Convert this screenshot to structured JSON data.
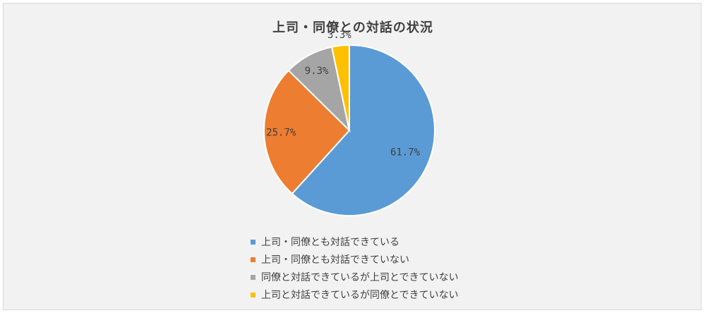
{
  "chart_data": {
    "type": "pie",
    "title": "上司・同僚との対話の状況",
    "categories": [
      "上司・同僚とも対話できている",
      "上司・同僚とも対話できていない",
      "同僚と対話できているが上司とできていない",
      "上司と対話できているが同僚とできていない"
    ],
    "values": [
      61.7,
      25.7,
      9.3,
      3.3
    ],
    "data_labels": [
      "61.7%",
      "25.7%",
      "9.3%",
      "3.3%"
    ],
    "colors": [
      "#5b9bd5",
      "#ed7d31",
      "#a5a5a5",
      "#ffc000"
    ],
    "legend_position": "bottom"
  }
}
